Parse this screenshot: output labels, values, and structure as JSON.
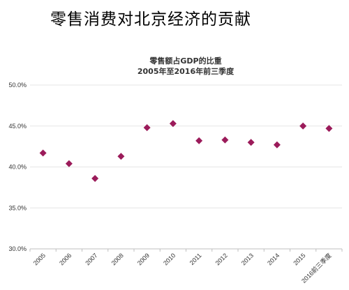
{
  "page": {
    "heading": "零售消费对北京经济的贡献"
  },
  "chart_data": {
    "type": "scatter",
    "title": "零售额占GDP的比重",
    "subtitle": "2005年至2016年前三季度",
    "xlabel": "",
    "ylabel": "",
    "categories": [
      "2005",
      "2006",
      "2007",
      "2008",
      "2009",
      "2010",
      "2011",
      "2012",
      "2013",
      "2014",
      "2015",
      "2016前三季度"
    ],
    "values": [
      41.7,
      40.4,
      38.6,
      41.3,
      44.8,
      45.3,
      43.2,
      43.3,
      43.0,
      42.7,
      45.0,
      44.7
    ],
    "ylim": [
      30,
      50
    ],
    "y_ticks": [
      50,
      45,
      40,
      35,
      30
    ],
    "y_tick_format": "percent_1dp",
    "grid": true,
    "legend": "none",
    "marker": "diamond",
    "colors": {
      "marker": "#9b1b5a",
      "grid": "#e6e6e6",
      "axis": "#bfbfbf"
    }
  }
}
